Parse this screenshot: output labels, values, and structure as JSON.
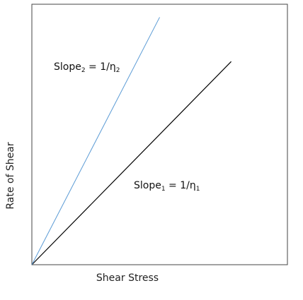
{
  "chart_data": {
    "type": "line",
    "title": "",
    "xlabel": "Shear Stress",
    "ylabel": "Rate of Shear",
    "xlim": [
      0,
      1
    ],
    "ylim": [
      0,
      1
    ],
    "grid": false,
    "legend": "none",
    "series": [
      {
        "x": [
          0,
          0.78
        ],
        "y": [
          0,
          0.78
        ],
        "color": "#000000"
      },
      {
        "x": [
          0,
          0.5
        ],
        "y": [
          0,
          0.95
        ],
        "color": "#5b9bd5"
      }
    ],
    "annotations": [
      {
        "text": "Slope",
        "subscript": "2",
        "rest": " = 1/η",
        "rest_subscript": "2",
        "series_index": 1
      },
      {
        "text": "Slope",
        "subscript": "1",
        "rest": " = 1/η",
        "rest_subscript": "1",
        "series_index": 0
      }
    ]
  }
}
